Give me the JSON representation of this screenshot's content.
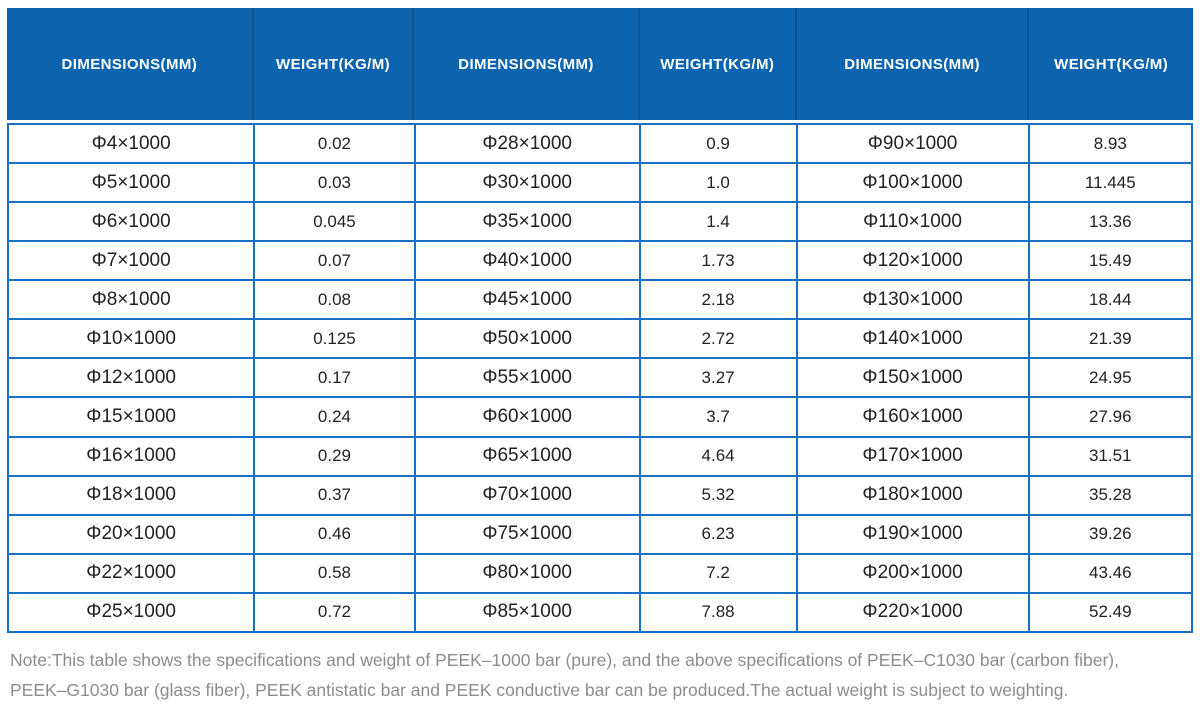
{
  "colors": {
    "header_bg": "#0c63ae",
    "header_divider": "#0a5496",
    "header_text": "#ffffff",
    "grid_border": "#1a70c4",
    "cell_text": "#222222",
    "note_text": "#8d8d8d"
  },
  "table": {
    "column_headers": [
      "DIMENSIONS(MM)",
      "WEIGHT(KG/M)",
      "DIMENSIONS(MM)",
      "WEIGHT(KG/M)",
      "DIMENSIONS(MM)",
      "WEIGHT(KG/M)"
    ],
    "rows": [
      [
        "Φ4×1000",
        "0.02",
        "Φ28×1000",
        "0.9",
        "Φ90×1000",
        "8.93"
      ],
      [
        "Φ5×1000",
        "0.03",
        "Φ30×1000",
        "1.0",
        "Φ100×1000",
        "11.445"
      ],
      [
        "Φ6×1000",
        "0.045",
        "Φ35×1000",
        "1.4",
        "Φ110×1000",
        "13.36"
      ],
      [
        "Φ7×1000",
        "0.07",
        "Φ40×1000",
        "1.73",
        "Φ120×1000",
        "15.49"
      ],
      [
        "Φ8×1000",
        "0.08",
        "Φ45×1000",
        "2.18",
        "Φ130×1000",
        "18.44"
      ],
      [
        "Φ10×1000",
        "0.125",
        "Φ50×1000",
        "2.72",
        "Φ140×1000",
        "21.39"
      ],
      [
        "Φ12×1000",
        "0.17",
        "Φ55×1000",
        "3.27",
        "Φ150×1000",
        "24.95"
      ],
      [
        "Φ15×1000",
        "0.24",
        "Φ60×1000",
        "3.7",
        "Φ160×1000",
        "27.96"
      ],
      [
        "Φ16×1000",
        "0.29",
        "Φ65×1000",
        "4.64",
        "Φ170×1000",
        "31.51"
      ],
      [
        "Φ18×1000",
        "0.37",
        "Φ70×1000",
        "5.32",
        "Φ180×1000",
        "35.28"
      ],
      [
        "Φ20×1000",
        "0.46",
        "Φ75×1000",
        "6.23",
        "Φ190×1000",
        "39.26"
      ],
      [
        "Φ22×1000",
        "0.58",
        "Φ80×1000",
        "7.2",
        "Φ200×1000",
        "43.46"
      ],
      [
        "Φ25×1000",
        "0.72",
        "Φ85×1000",
        "7.88",
        "Φ220×1000",
        "52.49"
      ]
    ]
  },
  "note": {
    "lines": [
      "Note:This table shows the specifications and weight of PEEK–1000 bar (pure), and the above specifications of PEEK–C1030 bar (carbon fiber),",
      "PEEK–G1030 bar (glass fiber), PEEK antistatic bar and PEEK conductive bar can be produced.The actual weight is subject to weighting."
    ]
  }
}
